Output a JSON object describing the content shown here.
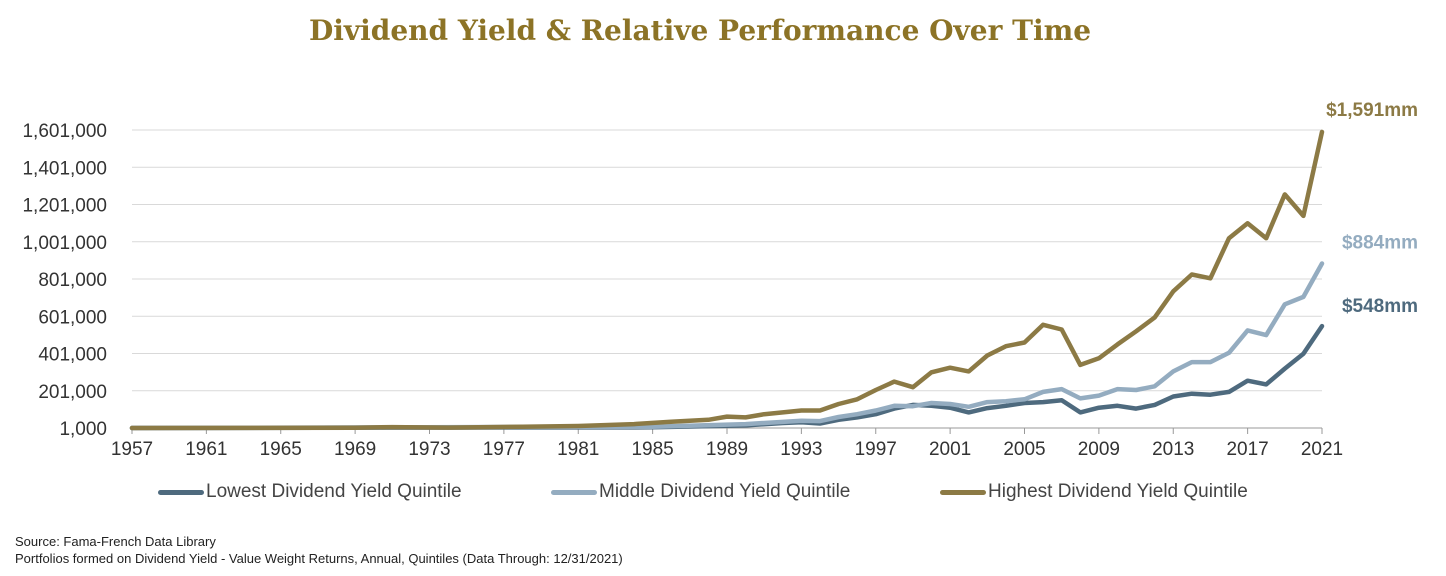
{
  "chart_data": {
    "type": "line",
    "title": "Dividend Yield & Relative Performance Over Time",
    "xlabel": "",
    "ylabel": "",
    "xlim": [
      1957,
      2021
    ],
    "ylim": [
      1000,
      1601000
    ],
    "y_ticks": [
      1000,
      201000,
      401000,
      601000,
      801000,
      1001000,
      1201000,
      1401000,
      1601000
    ],
    "y_tick_labels": [
      "1,000",
      "201,000",
      "401,000",
      "601,000",
      "801,000",
      "1,001,000",
      "1,201,000",
      "1,401,000",
      "1,601,000"
    ],
    "x_ticks": [
      1957,
      1961,
      1965,
      1969,
      1973,
      1977,
      1981,
      1985,
      1989,
      1993,
      1997,
      2001,
      2005,
      2009,
      2013,
      2017,
      2021
    ],
    "grid": true,
    "legend_position": "bottom",
    "series": [
      {
        "name": "Lowest Dividend Yield Quintile",
        "color": "#4e6a7e",
        "end_label": "$548mm",
        "points": [
          [
            1957,
            1000
          ],
          [
            1985,
            5000
          ],
          [
            1990,
            15000
          ],
          [
            1992,
            28000
          ],
          [
            1993,
            32000
          ],
          [
            1994,
            25000
          ],
          [
            1995,
            45000
          ],
          [
            1996,
            58000
          ],
          [
            1997,
            75000
          ],
          [
            1998,
            105000
          ],
          [
            1999,
            125000
          ],
          [
            2000,
            120000
          ],
          [
            2001,
            110000
          ],
          [
            2002,
            85000
          ],
          [
            2003,
            108000
          ],
          [
            2004,
            120000
          ],
          [
            2005,
            135000
          ],
          [
            2006,
            140000
          ],
          [
            2007,
            150000
          ],
          [
            2008,
            85000
          ],
          [
            2009,
            110000
          ],
          [
            2010,
            120000
          ],
          [
            2011,
            105000
          ],
          [
            2012,
            125000
          ],
          [
            2013,
            170000
          ],
          [
            2014,
            185000
          ],
          [
            2015,
            180000
          ],
          [
            2016,
            195000
          ],
          [
            2017,
            255000
          ],
          [
            2018,
            235000
          ],
          [
            2019,
            320000
          ],
          [
            2020,
            400000
          ],
          [
            2021,
            548000
          ]
        ]
      },
      {
        "name": "Middle Dividend Yield Quintile",
        "color": "#94acc0",
        "end_label": "$884mm",
        "points": [
          [
            1957,
            1000
          ],
          [
            1985,
            8000
          ],
          [
            1990,
            22000
          ],
          [
            1993,
            40000
          ],
          [
            1994,
            38000
          ],
          [
            1995,
            60000
          ],
          [
            1996,
            75000
          ],
          [
            1997,
            95000
          ],
          [
            1998,
            120000
          ],
          [
            1999,
            118000
          ],
          [
            2000,
            135000
          ],
          [
            2001,
            130000
          ],
          [
            2002,
            115000
          ],
          [
            2003,
            140000
          ],
          [
            2004,
            145000
          ],
          [
            2005,
            155000
          ],
          [
            2006,
            195000
          ],
          [
            2007,
            210000
          ],
          [
            2008,
            160000
          ],
          [
            2009,
            175000
          ],
          [
            2010,
            210000
          ],
          [
            2011,
            205000
          ],
          [
            2012,
            225000
          ],
          [
            2013,
            305000
          ],
          [
            2014,
            355000
          ],
          [
            2015,
            355000
          ],
          [
            2016,
            405000
          ],
          [
            2017,
            525000
          ],
          [
            2018,
            500000
          ],
          [
            2019,
            665000
          ],
          [
            2020,
            705000
          ],
          [
            2021,
            884000
          ]
        ]
      },
      {
        "name": "Highest Dividend Yield Quintile",
        "color": "#8c7a45",
        "end_label": "$1,591mm",
        "points": [
          [
            1957,
            1000
          ],
          [
            1969,
            2000
          ],
          [
            1971,
            6000
          ],
          [
            1974,
            3000
          ],
          [
            1978,
            8000
          ],
          [
            1981,
            12000
          ],
          [
            1984,
            22000
          ],
          [
            1986,
            35000
          ],
          [
            1988,
            45000
          ],
          [
            1989,
            62000
          ],
          [
            1990,
            58000
          ],
          [
            1991,
            75000
          ],
          [
            1992,
            85000
          ],
          [
            1993,
            95000
          ],
          [
            1994,
            95000
          ],
          [
            1995,
            130000
          ],
          [
            1996,
            155000
          ],
          [
            1997,
            205000
          ],
          [
            1998,
            250000
          ],
          [
            1999,
            220000
          ],
          [
            2000,
            300000
          ],
          [
            2001,
            325000
          ],
          [
            2002,
            305000
          ],
          [
            2003,
            390000
          ],
          [
            2004,
            440000
          ],
          [
            2005,
            460000
          ],
          [
            2006,
            555000
          ],
          [
            2007,
            530000
          ],
          [
            2008,
            340000
          ],
          [
            2009,
            375000
          ],
          [
            2010,
            450000
          ],
          [
            2011,
            520000
          ],
          [
            2012,
            595000
          ],
          [
            2013,
            735000
          ],
          [
            2014,
            825000
          ],
          [
            2015,
            805000
          ],
          [
            2016,
            1020000
          ],
          [
            2017,
            1100000
          ],
          [
            2018,
            1020000
          ],
          [
            2019,
            1255000
          ],
          [
            2020,
            1140000
          ],
          [
            2021,
            1591000
          ]
        ]
      }
    ]
  },
  "source_lines": [
    "Source: Fama-French Data Library",
    "Portfolios formed on Dividend Yield - Value Weight Returns, Annual, Quintiles (Data Through: 12/31/2021)"
  ]
}
